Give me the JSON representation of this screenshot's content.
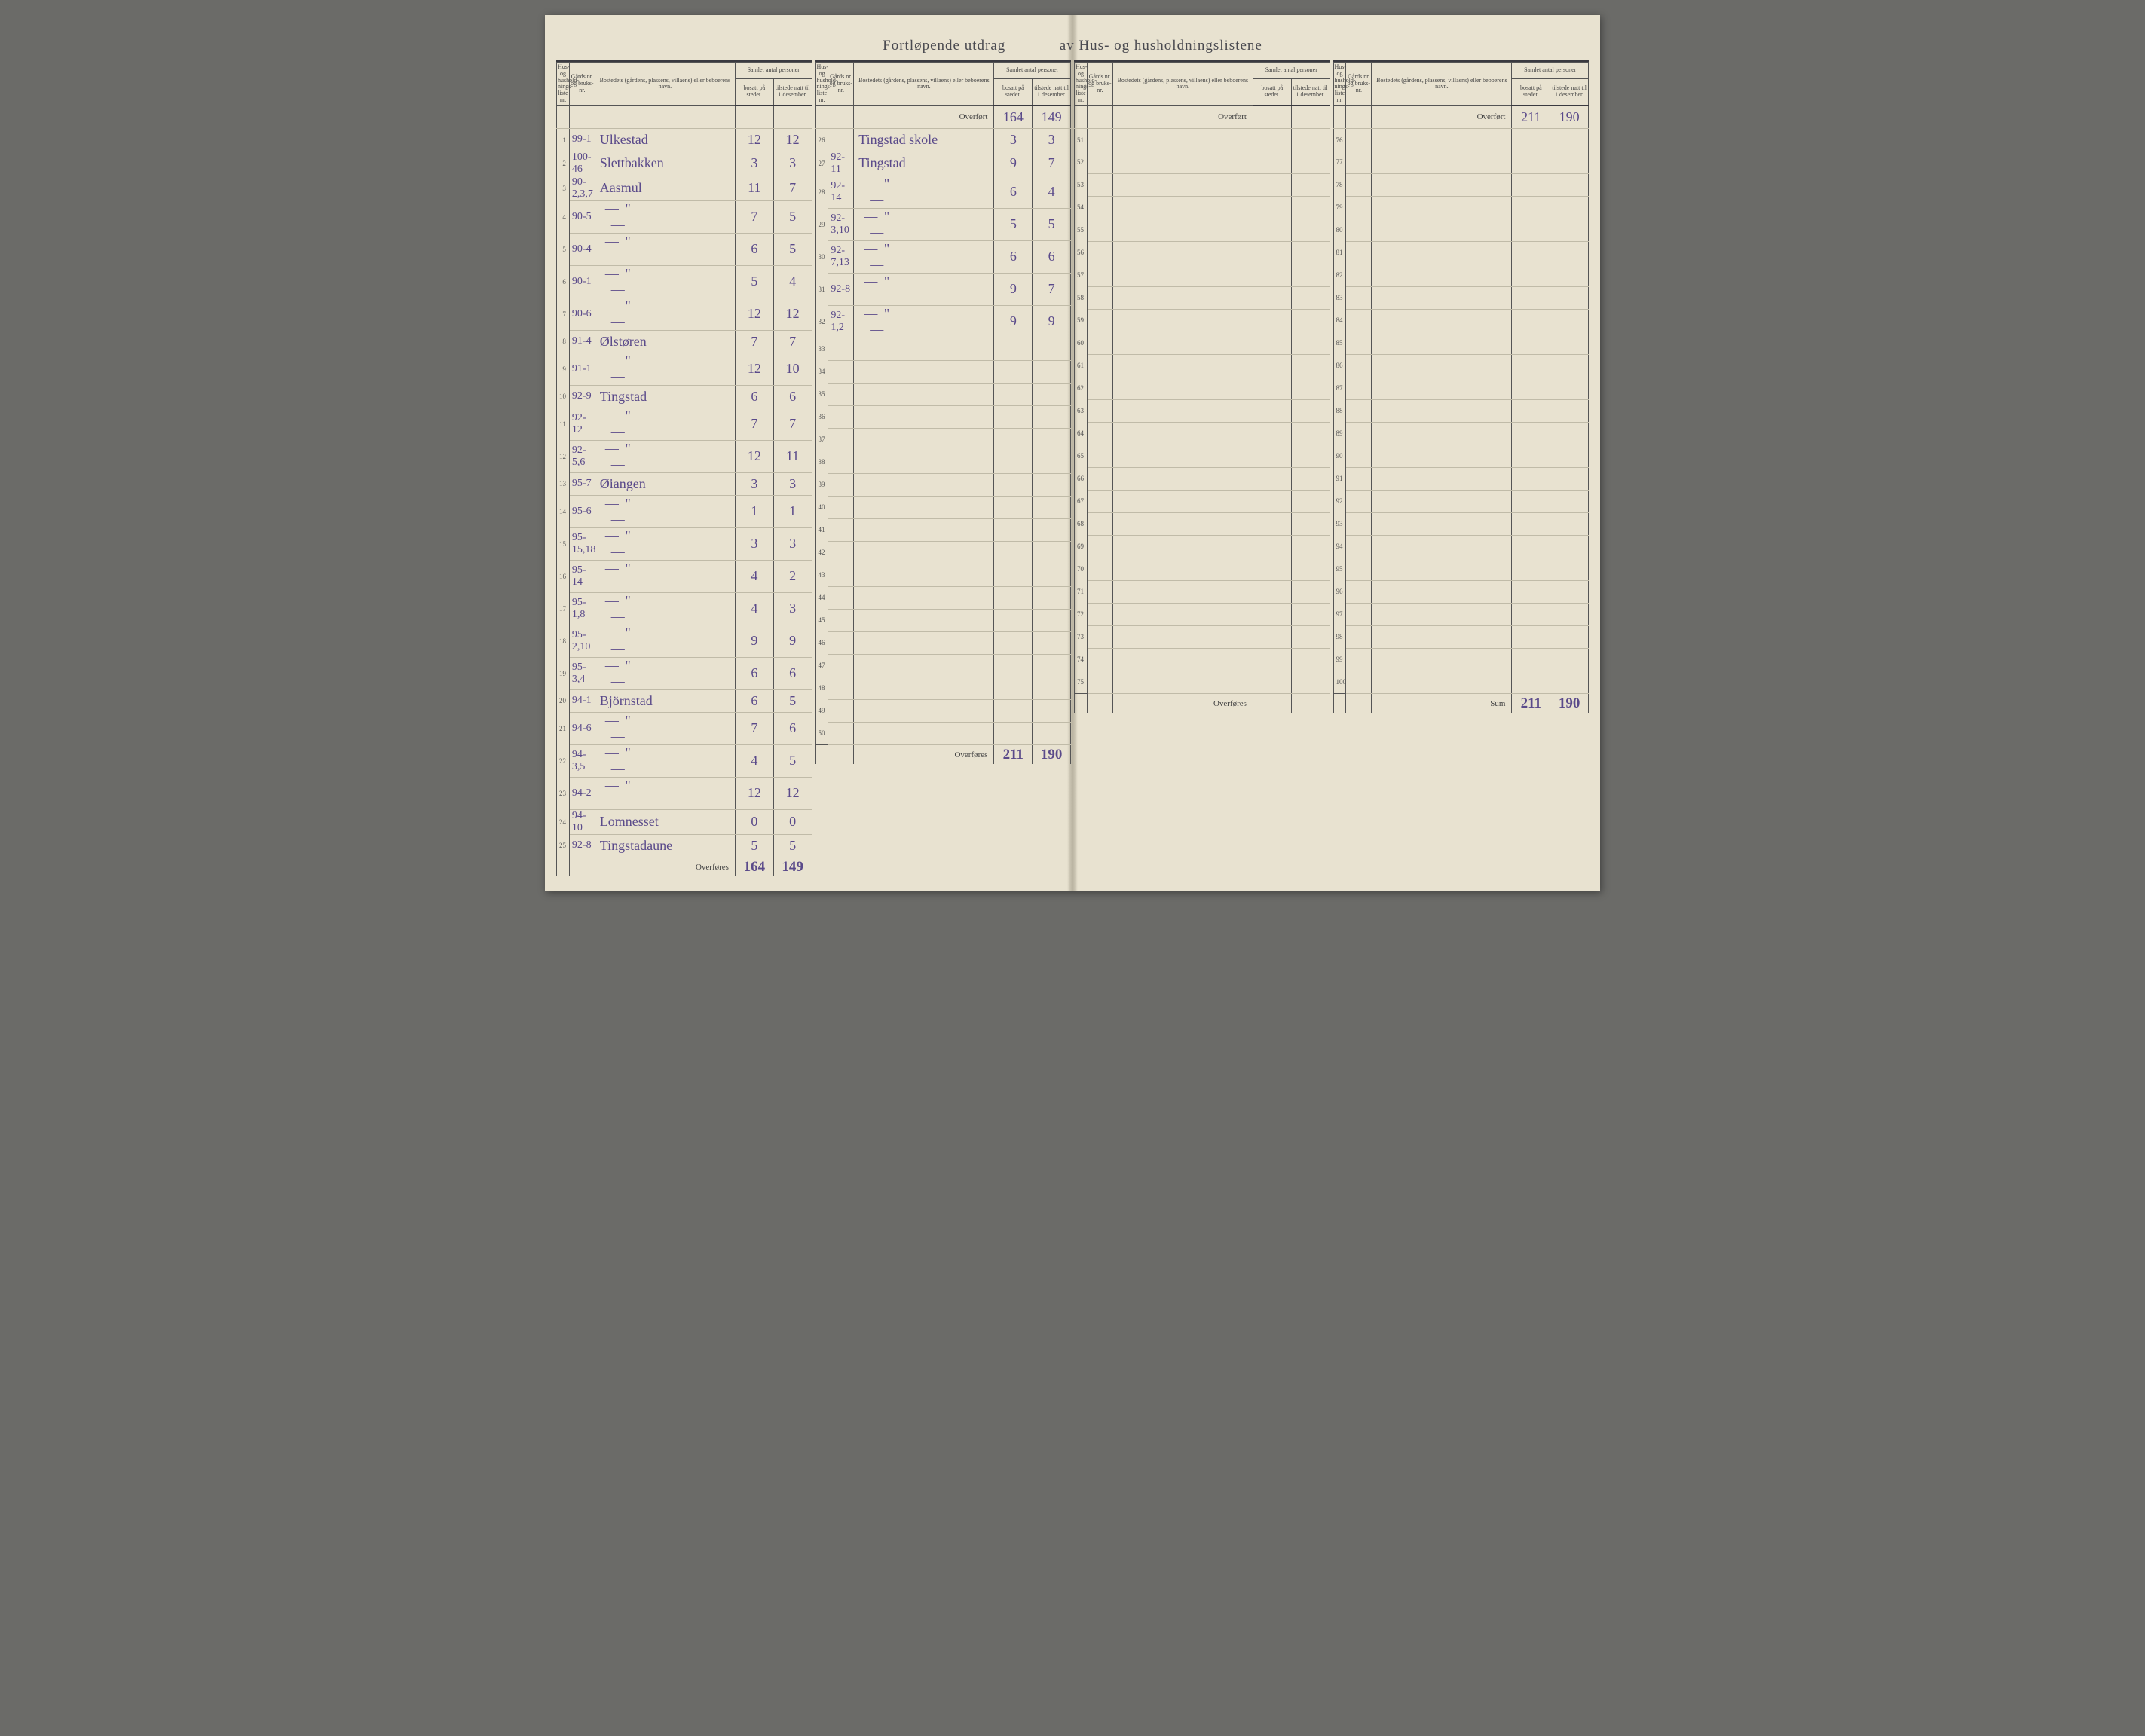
{
  "title_left": "Fortløpende utdrag",
  "title_right": "av Hus- og husholdningslistene",
  "headers": {
    "rownum": "Hus- og hushold-nings-liste nr.",
    "gard": "Gårds nr. og bruks-nr.",
    "name": "Bostedets (gårdens, plassens, villaens) eller beboerens navn.",
    "samlet": "Samlet antal personer",
    "bosatt": "bosatt på stedet.",
    "tilstede": "tilstede natt til 1 desember."
  },
  "overfort_label": "Overført",
  "overfores_label": "Overføres",
  "sum_label": "Sum",
  "ditto": "— \" —",
  "col1": {
    "rows": [
      {
        "n": "1",
        "g": "99-1",
        "name": "Ulkestad",
        "b": "12",
        "t": "12"
      },
      {
        "n": "2",
        "g": "100-46",
        "name": "Slettbakken",
        "b": "3",
        "t": "3"
      },
      {
        "n": "3",
        "g": "90-2,3,7",
        "name": "Aasmul",
        "b": "11",
        "t": "7"
      },
      {
        "n": "4",
        "g": "90-5",
        "name": "ditto",
        "b": "7",
        "t": "5"
      },
      {
        "n": "5",
        "g": "90-4",
        "name": "ditto",
        "b": "6",
        "t": "5"
      },
      {
        "n": "6",
        "g": "90-1",
        "name": "ditto",
        "b": "5",
        "t": "4"
      },
      {
        "n": "7",
        "g": "90-6",
        "name": "ditto",
        "b": "12",
        "t": "12"
      },
      {
        "n": "8",
        "g": "91-4",
        "name": "Ølstøren",
        "b": "7",
        "t": "7"
      },
      {
        "n": "9",
        "g": "91-1",
        "name": "ditto",
        "b": "12",
        "t": "10"
      },
      {
        "n": "10",
        "g": "92-9",
        "name": "Tingstad",
        "b": "6",
        "t": "6"
      },
      {
        "n": "11",
        "g": "92-12",
        "name": "ditto",
        "b": "7",
        "t": "7"
      },
      {
        "n": "12",
        "g": "92-5,6",
        "name": "ditto",
        "b": "12",
        "t": "11"
      },
      {
        "n": "13",
        "g": "95-7",
        "name": "Øiangen",
        "b": "3",
        "t": "3"
      },
      {
        "n": "14",
        "g": "95-6",
        "name": "ditto",
        "b": "1",
        "t": "1"
      },
      {
        "n": "15",
        "g": "95-15,18",
        "name": "ditto",
        "b": "3",
        "t": "3"
      },
      {
        "n": "16",
        "g": "95-14",
        "name": "ditto",
        "b": "4",
        "t": "2"
      },
      {
        "n": "17",
        "g": "95-1,8",
        "name": "ditto",
        "b": "4",
        "t": "3"
      },
      {
        "n": "18",
        "g": "95-2,10",
        "name": "ditto",
        "b": "9",
        "t": "9"
      },
      {
        "n": "19",
        "g": "95-3,4",
        "name": "ditto",
        "b": "6",
        "t": "6"
      },
      {
        "n": "20",
        "g": "94-1",
        "name": "Björnstad",
        "b": "6",
        "t": "5"
      },
      {
        "n": "21",
        "g": "94-6",
        "name": "ditto",
        "b": "7",
        "t": "6"
      },
      {
        "n": "22",
        "g": "94-3,5",
        "name": "ditto",
        "b": "4",
        "t": "5"
      },
      {
        "n": "23",
        "g": "94-2",
        "name": "ditto",
        "b": "12",
        "t": "12"
      },
      {
        "n": "24",
        "g": "94-10",
        "name": "Lomnesset",
        "b": "0",
        "t": "0"
      },
      {
        "n": "25",
        "g": "92-8",
        "name": "Tingstadaune",
        "b": "5",
        "t": "5"
      }
    ],
    "total_b": "164",
    "total_t": "149"
  },
  "col2": {
    "overf_b": "164",
    "overf_t": "149",
    "rows": [
      {
        "n": "26",
        "g": "",
        "name": "Tingstad skole",
        "b": "3",
        "t": "3"
      },
      {
        "n": "27",
        "g": "92-11",
        "name": "Tingstad",
        "b": "9",
        "t": "7"
      },
      {
        "n": "28",
        "g": "92-14",
        "name": "ditto",
        "b": "6",
        "t": "4"
      },
      {
        "n": "29",
        "g": "92-3,10",
        "name": "ditto",
        "b": "5",
        "t": "5"
      },
      {
        "n": "30",
        "g": "92-7,13",
        "name": "ditto",
        "b": "6",
        "t": "6"
      },
      {
        "n": "31",
        "g": "92-8",
        "name": "ditto",
        "b": "9",
        "t": "7"
      },
      {
        "n": "32",
        "g": "92-1,2",
        "name": "ditto",
        "b": "9",
        "t": "9"
      },
      {
        "n": "33"
      },
      {
        "n": "34"
      },
      {
        "n": "35"
      },
      {
        "n": "36"
      },
      {
        "n": "37"
      },
      {
        "n": "38"
      },
      {
        "n": "39"
      },
      {
        "n": "40"
      },
      {
        "n": "41"
      },
      {
        "n": "42"
      },
      {
        "n": "43"
      },
      {
        "n": "44"
      },
      {
        "n": "45"
      },
      {
        "n": "46"
      },
      {
        "n": "47"
      },
      {
        "n": "48"
      },
      {
        "n": "49"
      },
      {
        "n": "50"
      }
    ],
    "total_b": "211",
    "total_t": "190"
  },
  "col3": {
    "overf_b": "",
    "overf_t": "",
    "rows": [
      {
        "n": "51"
      },
      {
        "n": "52"
      },
      {
        "n": "53"
      },
      {
        "n": "54"
      },
      {
        "n": "55"
      },
      {
        "n": "56"
      },
      {
        "n": "57"
      },
      {
        "n": "58"
      },
      {
        "n": "59"
      },
      {
        "n": "60"
      },
      {
        "n": "61"
      },
      {
        "n": "62"
      },
      {
        "n": "63"
      },
      {
        "n": "64"
      },
      {
        "n": "65"
      },
      {
        "n": "66"
      },
      {
        "n": "67"
      },
      {
        "n": "68"
      },
      {
        "n": "69"
      },
      {
        "n": "70"
      },
      {
        "n": "71"
      },
      {
        "n": "72"
      },
      {
        "n": "73"
      },
      {
        "n": "74"
      },
      {
        "n": "75"
      }
    ],
    "total_b": "",
    "total_t": ""
  },
  "col4": {
    "overf_b": "211",
    "overf_t": "190",
    "rows": [
      {
        "n": "76"
      },
      {
        "n": "77"
      },
      {
        "n": "78"
      },
      {
        "n": "79"
      },
      {
        "n": "80"
      },
      {
        "n": "81"
      },
      {
        "n": "82"
      },
      {
        "n": "83"
      },
      {
        "n": "84"
      },
      {
        "n": "85"
      },
      {
        "n": "86"
      },
      {
        "n": "87"
      },
      {
        "n": "88"
      },
      {
        "n": "89"
      },
      {
        "n": "90"
      },
      {
        "n": "91"
      },
      {
        "n": "92"
      },
      {
        "n": "93"
      },
      {
        "n": "94"
      },
      {
        "n": "95"
      },
      {
        "n": "96"
      },
      {
        "n": "97"
      },
      {
        "n": "98"
      },
      {
        "n": "99"
      },
      {
        "n": "100"
      }
    ],
    "total_b": "211",
    "total_t": "190",
    "total_label": "Sum"
  }
}
